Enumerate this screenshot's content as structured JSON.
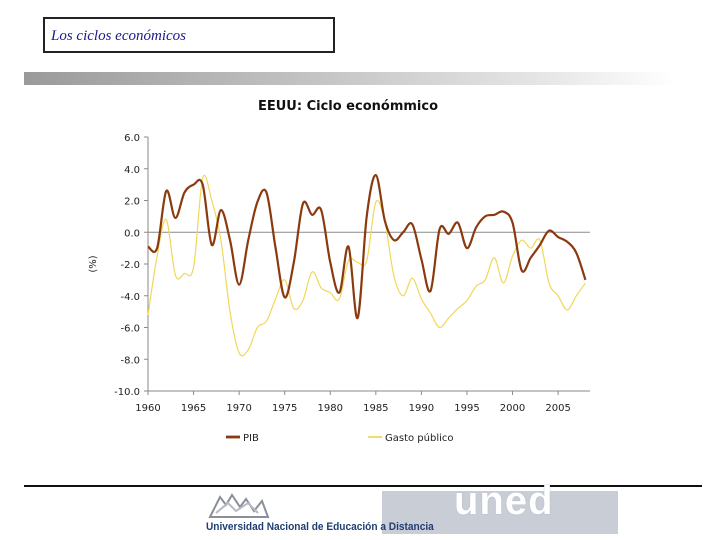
{
  "header": {
    "title": "Los ciclos económicos"
  },
  "logo": {
    "word": "uned",
    "text": "Universidad Nacional de Educación a Distancia"
  },
  "chart_data": {
    "type": "line",
    "title": "EEUU: Ciclo económmico",
    "ylabel": "(%)",
    "xlabel": "",
    "xlim": [
      1960,
      2008.5
    ],
    "ylim": [
      -10,
      6
    ],
    "xticks": [
      1960,
      1965,
      1970,
      1975,
      1980,
      1985,
      1990,
      1995,
      2000,
      2005
    ],
    "yticks": [
      6,
      4,
      2,
      0,
      -2,
      -4,
      -6,
      -8,
      -10
    ],
    "ytick_labels": [
      "6.0",
      "4.0",
      "2.0",
      "0.0",
      "-2.0",
      "-4.0",
      "-6.0",
      "-8.0",
      "-10.0"
    ],
    "grid": false,
    "legend": "bottom",
    "series": [
      {
        "name": "PIB",
        "color": "#8b3a0f",
        "x": [
          1960,
          1961,
          1962,
          1963,
          1964,
          1965,
          1966,
          1967,
          1968,
          1969,
          1970,
          1971,
          1972,
          1973,
          1974,
          1975,
          1976,
          1977,
          1978,
          1979,
          1980,
          1981,
          1982,
          1983,
          1984,
          1985,
          1986,
          1987,
          1988,
          1989,
          1990,
          1991,
          1992,
          1993,
          1994,
          1995,
          1996,
          1997,
          1998,
          1999,
          2000,
          2001,
          2002,
          2003,
          2004,
          2005,
          2006,
          2007,
          2008
        ],
        "values": [
          -0.9,
          -1.0,
          2.6,
          0.9,
          2.5,
          3.0,
          3.0,
          -0.8,
          1.4,
          -0.5,
          -3.3,
          -0.5,
          1.9,
          2.5,
          -1.0,
          -4.1,
          -1.9,
          1.8,
          1.1,
          1.4,
          -1.9,
          -3.8,
          -0.9,
          -5.4,
          1.0,
          3.6,
          0.7,
          -0.5,
          0.0,
          0.5,
          -1.7,
          -3.7,
          0.2,
          -0.1,
          0.6,
          -1.0,
          0.3,
          1.0,
          1.1,
          1.3,
          0.6,
          -2.4,
          -1.6,
          -0.8,
          0.1,
          -0.3,
          -0.6,
          -1.3,
          -3.0
        ]
      },
      {
        "name": "Gasto público",
        "color": "#f0d75a",
        "x": [
          1960,
          1961,
          1962,
          1963,
          1964,
          1965,
          1966,
          1967,
          1968,
          1969,
          1970,
          1971,
          1972,
          1973,
          1974,
          1975,
          1976,
          1977,
          1978,
          1979,
          1980,
          1981,
          1982,
          1983,
          1984,
          1985,
          1986,
          1987,
          1988,
          1989,
          1990,
          1991,
          1992,
          1993,
          1994,
          1995,
          1996,
          1997,
          1998,
          1999,
          2000,
          2001,
          2002,
          2003,
          2004,
          2005,
          2006,
          2007,
          2008
        ],
        "values": [
          -5.2,
          -1.5,
          0.8,
          -2.7,
          -2.6,
          -2.2,
          3.4,
          2.0,
          -0.5,
          -5.0,
          -7.6,
          -7.4,
          -6.0,
          -5.6,
          -4.2,
          -3.0,
          -4.8,
          -4.3,
          -2.5,
          -3.5,
          -3.8,
          -4.2,
          -1.8,
          -1.9,
          -1.8,
          1.9,
          0.6,
          -2.8,
          -4.0,
          -2.9,
          -4.2,
          -5.1,
          -6.0,
          -5.4,
          -4.8,
          -4.3,
          -3.4,
          -3.0,
          -1.6,
          -3.2,
          -1.5,
          -0.5,
          -1.0,
          -0.5,
          -3.2,
          -4.0,
          -4.9,
          -4.0,
          -3.2
        ]
      }
    ]
  }
}
